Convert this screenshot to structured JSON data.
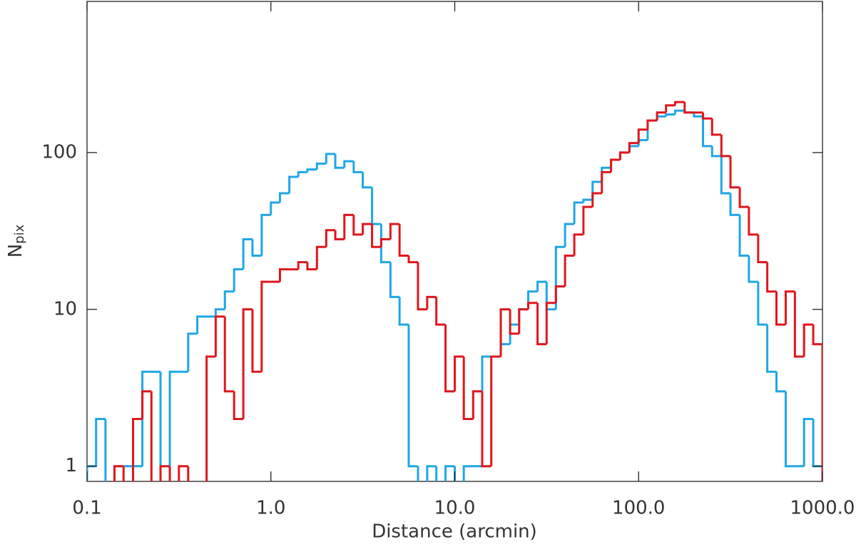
{
  "chart_data": {
    "type": "histogram",
    "xlabel": "Distance (arcmin)",
    "ylabel": {
      "base": "N",
      "subscript": "pix"
    },
    "log_x": true,
    "log_y": true,
    "xlim": [
      0.1,
      1000
    ],
    "ylim": [
      0.8,
      920
    ],
    "xticks": [
      0.1,
      {
        "value": 1,
        "label": "1.0"
      },
      {
        "value": 10,
        "label": "10.0"
      },
      {
        "value": 100,
        "label": "100.0"
      },
      {
        "value": 1000,
        "label": "1000.0"
      }
    ],
    "yticks": [
      1,
      10,
      100
    ],
    "bins": [
      0.1,
      0.112,
      0.126,
      0.141,
      0.158,
      0.178,
      0.2,
      0.224,
      0.251,
      0.282,
      0.316,
      0.355,
      0.398,
      0.447,
      0.501,
      0.562,
      0.631,
      0.708,
      0.794,
      0.891,
      1,
      1.12,
      1.26,
      1.41,
      1.58,
      1.78,
      2,
      2.24,
      2.51,
      2.82,
      3.16,
      3.55,
      3.98,
      4.47,
      5.01,
      5.62,
      6.31,
      7.08,
      7.94,
      8.91,
      10,
      11.2,
      12.6,
      14.1,
      15.8,
      17.8,
      20,
      22.4,
      25.1,
      28.2,
      31.6,
      35.5,
      39.8,
      44.7,
      50.1,
      56.2,
      63.1,
      70.8,
      79.4,
      89.1,
      100,
      112,
      126,
      141,
      158,
      178,
      200,
      224,
      251,
      282,
      316,
      355,
      398,
      447,
      501,
      562,
      631,
      708,
      794,
      891,
      1000
    ],
    "series": [
      {
        "color": "#1ea7e6",
        "values": [
          1,
          2,
          0,
          1,
          1,
          1,
          4,
          4,
          0,
          4,
          4,
          7,
          9,
          9,
          10,
          13,
          18,
          28,
          22,
          40,
          48,
          55,
          70,
          75,
          78,
          85,
          98,
          80,
          88,
          75,
          60,
          35,
          20,
          12,
          8,
          1,
          0,
          1,
          0,
          1,
          0,
          1,
          1,
          5,
          5,
          6,
          8,
          10,
          13,
          15,
          10,
          25,
          35,
          48,
          50,
          65,
          80,
          90,
          100,
          110,
          120,
          160,
          170,
          175,
          185,
          180,
          170,
          110,
          95,
          55,
          40,
          22,
          15,
          8,
          4,
          3,
          1,
          1,
          2,
          1
        ]
      },
      {
        "color": "#e0161c",
        "values": [
          0,
          0,
          0,
          1,
          0,
          2,
          3,
          0,
          1,
          0,
          1,
          0,
          0,
          5,
          9,
          3,
          2,
          10,
          4,
          15,
          15,
          18,
          18,
          20,
          18,
          25,
          32,
          28,
          40,
          30,
          35,
          25,
          28,
          35,
          22,
          20,
          10,
          12,
          8,
          3,
          5,
          2,
          3,
          1,
          5,
          10,
          7,
          10,
          11,
          6,
          11,
          14,
          22,
          30,
          45,
          55,
          75,
          90,
          100,
          115,
          140,
          160,
          180,
          200,
          210,
          180,
          180,
          165,
          130,
          95,
          60,
          45,
          30,
          20,
          13,
          8,
          13,
          5,
          8,
          6
        ]
      }
    ]
  }
}
